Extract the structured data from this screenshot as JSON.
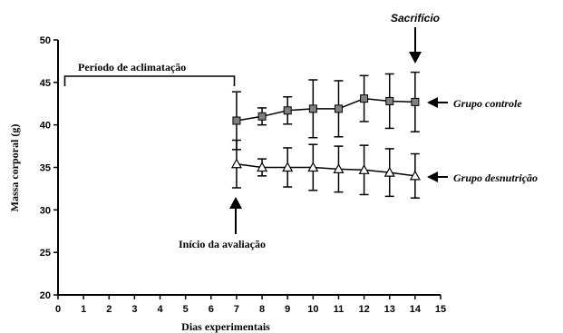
{
  "chart_data": {
    "type": "line",
    "title": "",
    "xlabel": "Dias experimentais",
    "ylabel": "Massa corporal (g)",
    "xlim": [
      0,
      15
    ],
    "ylim": [
      20,
      50
    ],
    "xticks": [
      0,
      1,
      2,
      3,
      4,
      5,
      6,
      7,
      8,
      9,
      10,
      11,
      12,
      13,
      14,
      15
    ],
    "yticks": [
      20,
      25,
      30,
      35,
      40,
      45,
      50
    ],
    "grid": false,
    "series": [
      {
        "name": "Grupo controle",
        "marker": "square",
        "color": "#808080",
        "x": [
          7,
          8,
          9,
          10,
          11,
          12,
          13,
          14
        ],
        "y": [
          40.5,
          41.0,
          41.7,
          41.9,
          41.9,
          43.1,
          42.8,
          42.7
        ],
        "err": [
          3.4,
          1.0,
          1.6,
          3.4,
          3.3,
          2.7,
          3.2,
          3.5
        ]
      },
      {
        "name": "Grupo desnutrição",
        "marker": "triangle-open",
        "color": "#ffffff",
        "x": [
          7,
          8,
          9,
          10,
          11,
          12,
          13,
          14
        ],
        "y": [
          35.4,
          35.0,
          35.0,
          35.0,
          34.8,
          34.7,
          34.4,
          34.0
        ],
        "err": [
          2.8,
          1.0,
          2.3,
          2.7,
          2.7,
          2.9,
          2.8,
          2.6
        ]
      }
    ],
    "annotations": {
      "acclimation": "Período de aclimatação",
      "evaluation_start": "Início da avaliação",
      "sacrifice": "Sacrifício"
    }
  }
}
